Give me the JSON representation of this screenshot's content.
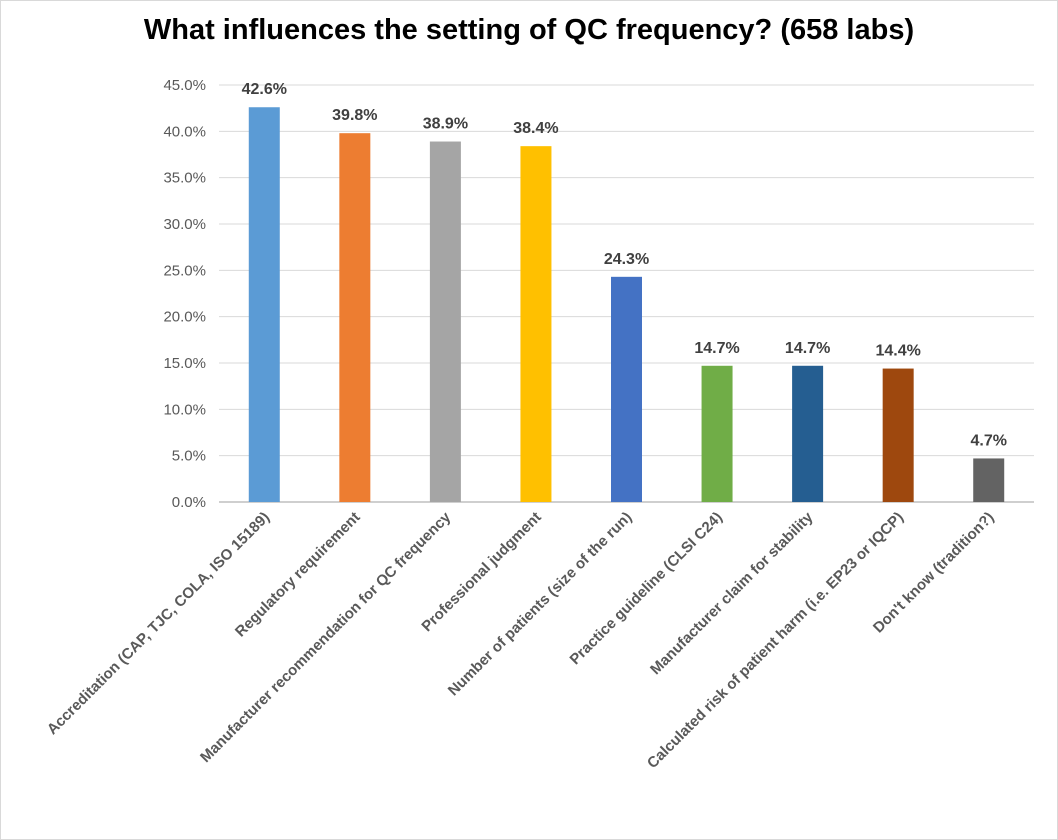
{
  "chart_data": {
    "type": "bar",
    "title": "What influences the setting of QC frequency? (658 labs)",
    "xlabel": "",
    "ylabel": "",
    "ylim": [
      0,
      45
    ],
    "grid": true,
    "legend": "none",
    "yticks": [
      "0.0%",
      "5.0%",
      "10.0%",
      "15.0%",
      "20.0%",
      "25.0%",
      "30.0%",
      "35.0%",
      "40.0%",
      "45.0%"
    ],
    "categories": [
      "Accreditation (CAP, TJC, COLA, ISO 15189)",
      "Regulatory requirement",
      "Manufacturer recommendation for QC frequency",
      "Professional judgment",
      "Number of patients (size of the run)",
      "Practice guideline (CLSI C24)",
      "Manufacturer claim for stability",
      "Calculated risk of patient harm  (i.e. EP23 or IQCP)",
      "Don't know (tradition?)"
    ],
    "values": [
      42.6,
      39.8,
      38.9,
      38.4,
      24.3,
      14.7,
      14.7,
      14.4,
      4.7
    ],
    "data_labels": [
      "42.6%",
      "39.8%",
      "38.9%",
      "38.4%",
      "24.3%",
      "14.7%",
      "14.7%",
      "14.4%",
      "4.7%"
    ],
    "colors": [
      "#5B9BD5",
      "#ED7D31",
      "#A5A5A5",
      "#FFC000",
      "#4472C4",
      "#70AD47",
      "#255E91",
      "#9E480E",
      "#636363"
    ]
  }
}
